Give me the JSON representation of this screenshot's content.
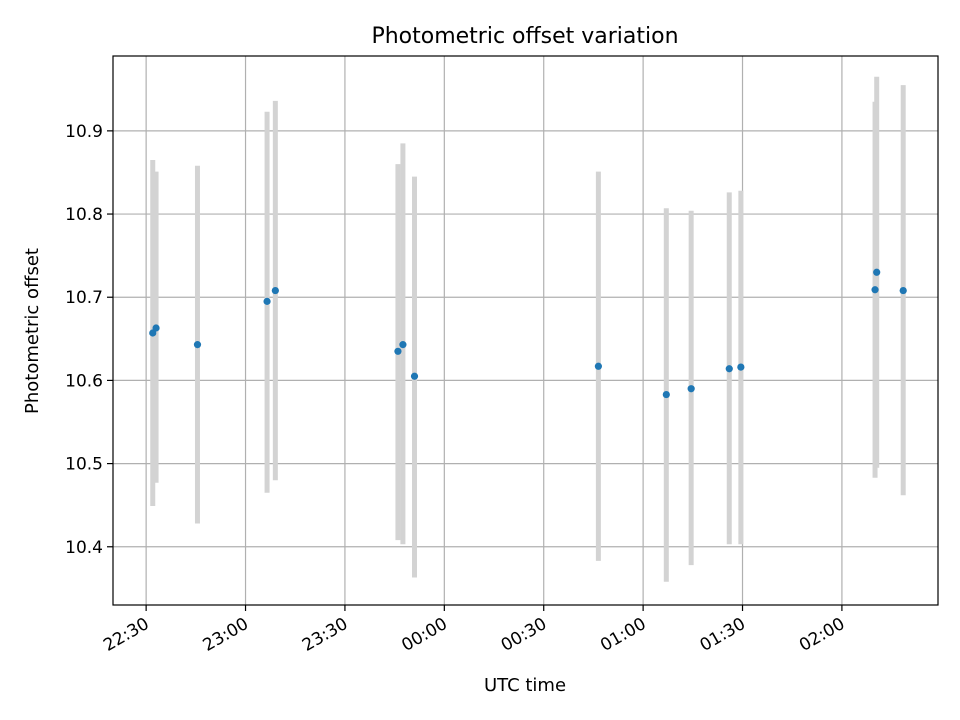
{
  "chart_data": {
    "type": "scatter",
    "title": "Photometric offset variation",
    "xlabel": "UTC time",
    "ylabel": "Photometric offset",
    "xlim": [
      "2023-01-01T22:20:00",
      "2023-01-02T02:29:00"
    ],
    "ylim": [
      10.33,
      10.99
    ],
    "grid": true,
    "x_ticks": [
      {
        "t": "2023-01-01T22:30:00",
        "label": "22:30"
      },
      {
        "t": "2023-01-01T23:00:00",
        "label": "23:00"
      },
      {
        "t": "2023-01-01T23:30:00",
        "label": "23:30"
      },
      {
        "t": "2023-01-02T00:00:00",
        "label": "00:00"
      },
      {
        "t": "2023-01-02T00:30:00",
        "label": "00:30"
      },
      {
        "t": "2023-01-02T01:00:00",
        "label": "01:00"
      },
      {
        "t": "2023-01-02T01:30:00",
        "label": "01:30"
      },
      {
        "t": "2023-01-02T02:00:00",
        "label": "02:00"
      }
    ],
    "y_ticks": [
      {
        "v": 10.4,
        "label": "10.4"
      },
      {
        "v": 10.5,
        "label": "10.5"
      },
      {
        "v": 10.6,
        "label": "10.6"
      },
      {
        "v": 10.7,
        "label": "10.7"
      },
      {
        "v": 10.8,
        "label": "10.8"
      },
      {
        "v": 10.9,
        "label": "10.9"
      }
    ],
    "points": [
      {
        "t": "2023-01-01T22:32:00",
        "y": 10.657,
        "ylow": 10.449,
        "yhigh": 10.865
      },
      {
        "t": "2023-01-01T22:33:00",
        "y": 10.663,
        "ylow": 10.477,
        "yhigh": 10.851
      },
      {
        "t": "2023-01-01T22:45:30",
        "y": 10.643,
        "ylow": 10.428,
        "yhigh": 10.858
      },
      {
        "t": "2023-01-01T23:06:30",
        "y": 10.695,
        "ylow": 10.465,
        "yhigh": 10.923
      },
      {
        "t": "2023-01-01T23:09:00",
        "y": 10.708,
        "ylow": 10.48,
        "yhigh": 10.936
      },
      {
        "t": "2023-01-01T23:46:00",
        "y": 10.635,
        "ylow": 10.408,
        "yhigh": 10.86
      },
      {
        "t": "2023-01-01T23:47:30",
        "y": 10.643,
        "ylow": 10.403,
        "yhigh": 10.885
      },
      {
        "t": "2023-01-01T23:51:00",
        "y": 10.605,
        "ylow": 10.363,
        "yhigh": 10.845
      },
      {
        "t": "2023-01-02T00:46:30",
        "y": 10.617,
        "ylow": 10.383,
        "yhigh": 10.851
      },
      {
        "t": "2023-01-02T01:07:00",
        "y": 10.583,
        "ylow": 10.358,
        "yhigh": 10.807
      },
      {
        "t": "2023-01-02T01:14:30",
        "y": 10.59,
        "ylow": 10.378,
        "yhigh": 10.804
      },
      {
        "t": "2023-01-02T01:26:00",
        "y": 10.614,
        "ylow": 10.403,
        "yhigh": 10.826
      },
      {
        "t": "2023-01-02T01:29:30",
        "y": 10.616,
        "ylow": 10.403,
        "yhigh": 10.828
      },
      {
        "t": "2023-01-02T02:10:00",
        "y": 10.709,
        "ylow": 10.483,
        "yhigh": 10.935
      },
      {
        "t": "2023-01-02T02:10:30",
        "y": 10.73,
        "ylow": 10.495,
        "yhigh": 10.965
      },
      {
        "t": "2023-01-02T02:18:30",
        "y": 10.708,
        "ylow": 10.462,
        "yhigh": 10.955
      }
    ],
    "colors": {
      "marker": "#1f77b4",
      "errorbar": "#d3d3d3",
      "grid": "#b0b0b0",
      "axes": "#000000"
    }
  }
}
